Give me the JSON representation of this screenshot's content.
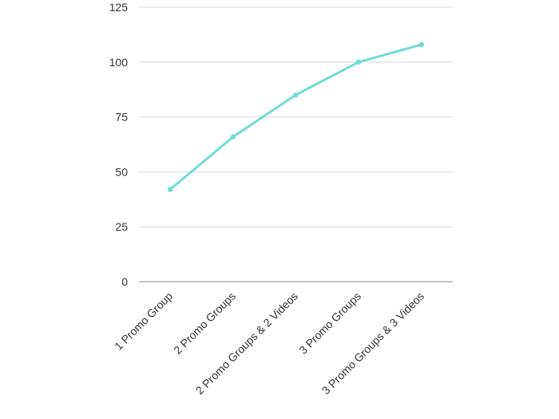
{
  "chart_data": {
    "type": "line",
    "categories": [
      "1 Promo Group",
      "2 Promo Groups",
      "2 Promo Groups & 2 Videos",
      "3 Promo Groups",
      "3 Promo Groups & 3 Videos"
    ],
    "series": [
      {
        "values": [
          42,
          66,
          85,
          100,
          108
        ],
        "color": "#6fdcd6"
      }
    ],
    "ylim": [
      0,
      125
    ],
    "yticks": [
      0,
      25,
      50,
      75,
      100,
      125
    ],
    "grid": true,
    "title": "",
    "xlabel": "",
    "ylabel": ""
  }
}
